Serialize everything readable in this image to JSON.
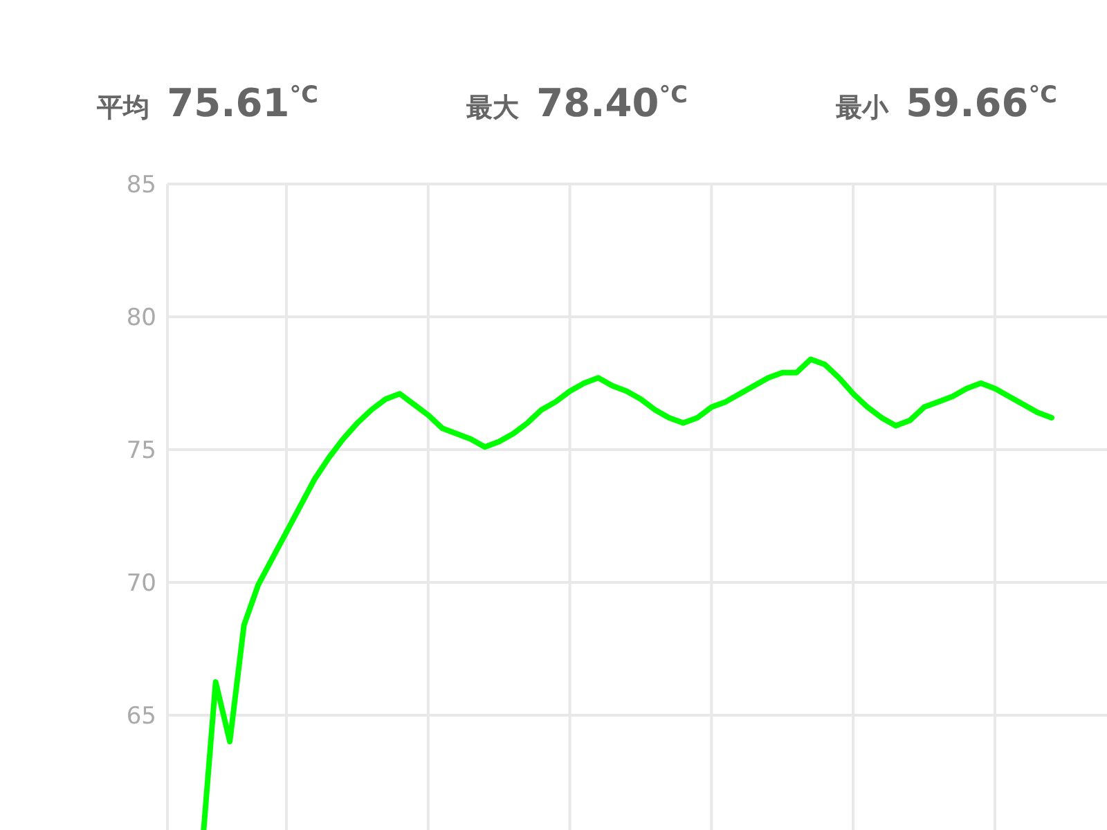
{
  "chart_data": {
    "type": "line",
    "annotations": [
      "平均 75.61$^{°C}$",
      "最大 78.40$^{°C}$",
      "最小 59.66$^{°C}$"
    ],
    "categories": [
      null,
      null,
      null,
      null,
      null,
      null,
      null,
      null,
      null,
      null,
      null,
      null,
      null,
      null,
      null,
      null,
      null,
      null,
      null,
      null,
      null,
      null,
      null,
      null,
      null,
      null,
      null,
      null,
      null,
      null,
      null,
      null,
      null,
      null,
      null,
      null,
      null,
      null,
      null,
      null,
      null,
      null,
      null,
      null,
      null,
      null,
      null,
      null,
      null,
      null,
      null,
      null,
      null,
      null,
      null,
      null,
      null,
      null,
      null,
      null,
      null
    ],
    "ylim": [
      59.5,
      85
    ],
    "yticks": [
      65,
      70,
      75,
      80,
      85
    ],
    "grid": true,
    "tick_labels": "y",
    "marker": "none",
    "line_style": "solid",
    "series": [
      {
        "color": "#00ff00",
        "values": [
          59.66,
          66.25,
          64.01,
          68.39,
          69.9,
          70.9,
          71.9,
          72.9,
          73.9,
          74.7,
          75.4,
          76.0,
          76.5,
          76.9,
          77.1,
          76.7,
          76.3,
          75.8,
          75.6,
          75.4,
          75.1,
          75.3,
          75.6,
          76.0,
          76.5,
          76.8,
          77.2,
          77.5,
          77.7,
          77.4,
          77.2,
          76.9,
          76.5,
          76.2,
          76.0,
          76.2,
          76.6,
          76.8,
          77.1,
          77.4,
          77.7,
          77.9,
          77.9,
          78.4,
          78.2,
          77.7,
          77.1,
          76.6,
          76.2,
          75.9,
          76.1,
          76.6,
          76.8,
          77.0,
          77.3,
          77.5,
          77.3,
          77.0,
          76.7,
          76.4,
          76.2
        ]
      }
    ]
  }
}
